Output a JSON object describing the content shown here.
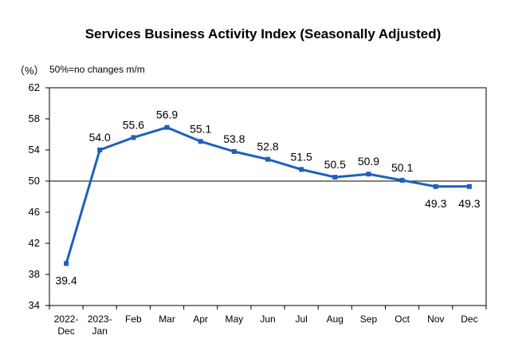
{
  "chart_data": {
    "type": "line",
    "title": "Services Business Activity Index (Seasonally Adjusted)",
    "unit_label": "（%）",
    "note": "50%=no changes m/m",
    "categories": [
      [
        "2022-",
        "Dec"
      ],
      [
        "2023-",
        "Jan"
      ],
      [
        "Feb"
      ],
      [
        "Mar"
      ],
      [
        "Apr"
      ],
      [
        "May"
      ],
      [
        "Jun"
      ],
      [
        "Jul"
      ],
      [
        "Aug"
      ],
      [
        "Sep"
      ],
      [
        "Oct"
      ],
      [
        "Nov"
      ],
      [
        "Dec"
      ]
    ],
    "values": [
      39.4,
      54.0,
      55.6,
      56.9,
      55.1,
      53.8,
      52.8,
      51.5,
      50.5,
      50.9,
      50.1,
      49.3,
      49.3
    ],
    "value_labels": [
      "39.4",
      "54.0",
      "55.6",
      "56.9",
      "55.1",
      "53.8",
      "52.8",
      "51.5",
      "50.5",
      "50.9",
      "50.1",
      "49.3",
      "49.3"
    ],
    "ylim": [
      34,
      62
    ],
    "yticks": [
      34,
      38,
      42,
      46,
      50,
      54,
      58,
      62
    ],
    "reference_line": 50,
    "line_color": "#1f5fbf",
    "grid": false,
    "legend": "none"
  }
}
